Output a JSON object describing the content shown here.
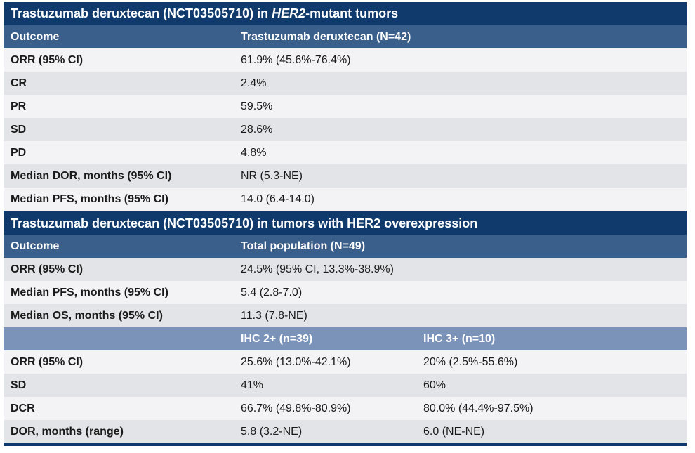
{
  "section1": {
    "title_prefix": "Trastuzumab deruxtecan (NCT03505710) in ",
    "title_italic": "HER2",
    "title_suffix": "-mutant tumors",
    "header": {
      "col1": "Outcome",
      "col2": "Trastuzumab deruxtecan (N=42)"
    },
    "rows": [
      {
        "label": "ORR (95% CI)",
        "value": "61.9% (45.6%-76.4%)"
      },
      {
        "label": "CR",
        "value": "2.4%"
      },
      {
        "label": "PR",
        "value": "59.5%"
      },
      {
        "label": "SD",
        "value": "28.6%"
      },
      {
        "label": "PD",
        "value": "4.8%"
      },
      {
        "label": "Median DOR, months (95% CI)",
        "value": "NR (5.3-NE)"
      },
      {
        "label": "Median PFS, months (95% CI)",
        "value": "14.0 (6.4-14.0)"
      }
    ]
  },
  "section2": {
    "title": "Trastuzumab deruxtecan (NCT03505710) in tumors with HER2 overexpression",
    "header": {
      "col1": "Outcome",
      "col2": "Total population (N=49)"
    },
    "rows": [
      {
        "label": "ORR (95% CI)",
        "value": "24.5% (95% CI, 13.3%-38.9%)"
      },
      {
        "label": "Median PFS, months (95% CI)",
        "value": "5.4 (2.8-7.0)"
      },
      {
        "label": "Median OS, months (95% CI)",
        "value": "11.3 (7.8-NE)"
      }
    ],
    "subheader": {
      "col1": "",
      "col2": "IHC 2+ (n=39)",
      "col3": "IHC 3+ (n=10)"
    },
    "subrows": [
      {
        "label": "ORR (95% CI)",
        "ihc2": "25.6% (13.0%-42.1%)",
        "ihc3": "20% (2.5%-55.6%)"
      },
      {
        "label": "SD",
        "ihc2": "41%",
        "ihc3": "60%"
      },
      {
        "label": "DCR",
        "ihc2": "66.7% (49.8%-80.9%)",
        "ihc3": "80.0% (44.4%-97.5%)"
      },
      {
        "label": "DOR, months (range)",
        "ihc2": "5.8 (3.2-NE)",
        "ihc3": "6.0 (NE-NE)"
      }
    ]
  }
}
